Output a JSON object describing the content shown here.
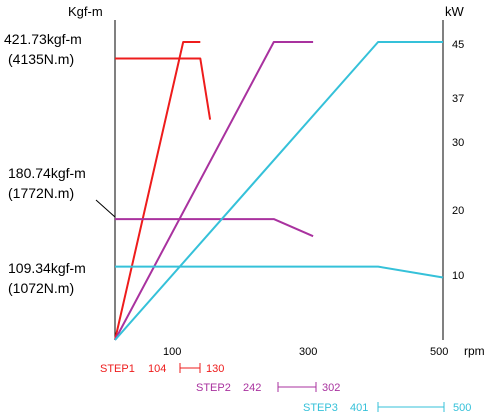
{
  "chart_data": {
    "type": "line",
    "x_unit": "rpm",
    "x_ticks": [
      "100",
      "300",
      "500"
    ],
    "x_range": [
      0,
      500
    ],
    "left_axis": {
      "unit": "Kgf-m"
    },
    "right_axis": {
      "unit": "kW",
      "ticks": [
        "45",
        "37",
        "30",
        "20",
        "10"
      ]
    },
    "annotations": [
      {
        "line1": "421.73kgf-m",
        "line2": "(4135N.m)"
      },
      {
        "line1": "180.74kgf-m",
        "line2": "(1772N.m)"
      },
      {
        "line1": "109.34kgf-m",
        "line2": "(1072N.m)"
      }
    ],
    "steps": [
      {
        "label": "STEP1",
        "low": "104",
        "high": "130",
        "color": "#ee1c1c"
      },
      {
        "label": "STEP2",
        "low": "242",
        "high": "302",
        "color": "#a9329f"
      },
      {
        "label": "STEP3",
        "low": "401",
        "high": "500",
        "color": "#35c1d9"
      }
    ],
    "series": [
      {
        "color": "#ee1c1c",
        "torque": [
          [
            104,
            421.73
          ],
          [
            130,
            421.73
          ],
          [
            145,
            330
          ]
        ],
        "power": [
          [
            0,
            0
          ],
          [
            104,
            45
          ],
          [
            130,
            45
          ]
        ]
      },
      {
        "color": "#a9329f",
        "torque": [
          [
            0,
            180.74
          ],
          [
            242,
            180.74
          ],
          [
            302,
            155
          ]
        ],
        "power": [
          [
            0,
            0
          ],
          [
            242,
            45
          ],
          [
            302,
            45
          ]
        ]
      },
      {
        "color": "#35c1d9",
        "torque": [
          [
            0,
            109.34
          ],
          [
            401,
            109.34
          ],
          [
            500,
            93
          ]
        ],
        "power": [
          [
            0,
            0
          ],
          [
            401,
            45
          ],
          [
            500,
            45
          ]
        ]
      }
    ]
  }
}
